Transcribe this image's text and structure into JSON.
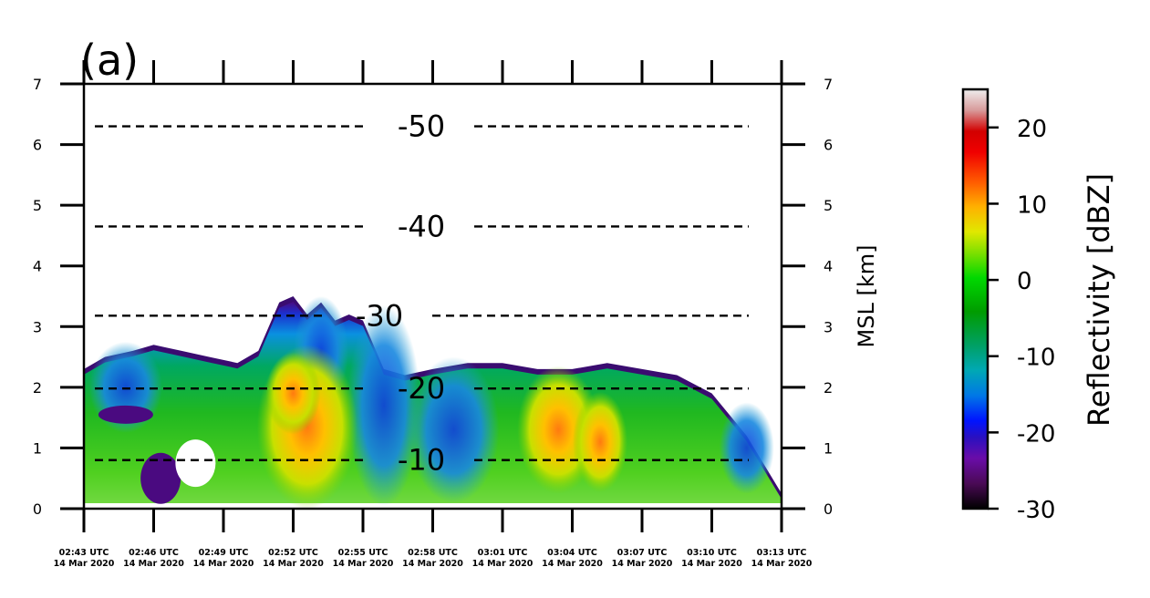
{
  "chart_data": {
    "type": "heatmap",
    "panel_label": "(a)",
    "ylabel_right": "MSL [km]",
    "y_ticks": [
      0,
      1,
      2,
      3,
      4,
      5,
      6,
      7
    ],
    "ylim": [
      0,
      7
    ],
    "x_ticks": [
      {
        "time": "02:43 UTC",
        "date": "14 Mar 2020"
      },
      {
        "time": "02:46 UTC",
        "date": "14 Mar 2020"
      },
      {
        "time": "02:49 UTC",
        "date": "14 Mar 2020"
      },
      {
        "time": "02:52 UTC",
        "date": "14 Mar 2020"
      },
      {
        "time": "02:55 UTC",
        "date": "14 Mar 2020"
      },
      {
        "time": "02:58 UTC",
        "date": "14 Mar 2020"
      },
      {
        "time": "03:01 UTC",
        "date": "14 Mar 2020"
      },
      {
        "time": "03:04 UTC",
        "date": "14 Mar 2020"
      },
      {
        "time": "03:07 UTC",
        "date": "14 Mar 2020"
      },
      {
        "time": "03:10 UTC",
        "date": "14 Mar 2020"
      },
      {
        "time": "03:13 UTC",
        "date": "14 Mar 2020"
      }
    ],
    "isotherms": [
      {
        "label": "-10",
        "height_km": 0.8
      },
      {
        "label": "-20",
        "height_km": 1.98
      },
      {
        "label": "-30",
        "height_km": 3.18
      },
      {
        "label": "-40",
        "height_km": 4.65
      },
      {
        "label": "-50",
        "height_km": 6.3
      }
    ],
    "colorbar": {
      "label": "Reflectivity [dBZ]",
      "range": [
        -30,
        25
      ],
      "ticks": [
        -30,
        -20,
        -10,
        0,
        10,
        20
      ]
    },
    "echo_top_profile": {
      "x_fraction": [
        0,
        0.03,
        0.07,
        0.1,
        0.14,
        0.18,
        0.22,
        0.25,
        0.28,
        0.3,
        0.32,
        0.34,
        0.36,
        0.38,
        0.4,
        0.43,
        0.46,
        0.5,
        0.55,
        0.6,
        0.65,
        0.7,
        0.75,
        0.8,
        0.85,
        0.9,
        0.95,
        1.0
      ],
      "top_km": [
        2.3,
        2.5,
        2.6,
        2.7,
        2.6,
        2.5,
        2.4,
        2.6,
        3.4,
        3.5,
        3.2,
        3.4,
        3.1,
        3.2,
        3.1,
        2.3,
        2.2,
        2.3,
        2.4,
        2.4,
        2.3,
        2.3,
        2.4,
        2.3,
        2.2,
        1.9,
        1.2,
        0.25
      ]
    }
  }
}
